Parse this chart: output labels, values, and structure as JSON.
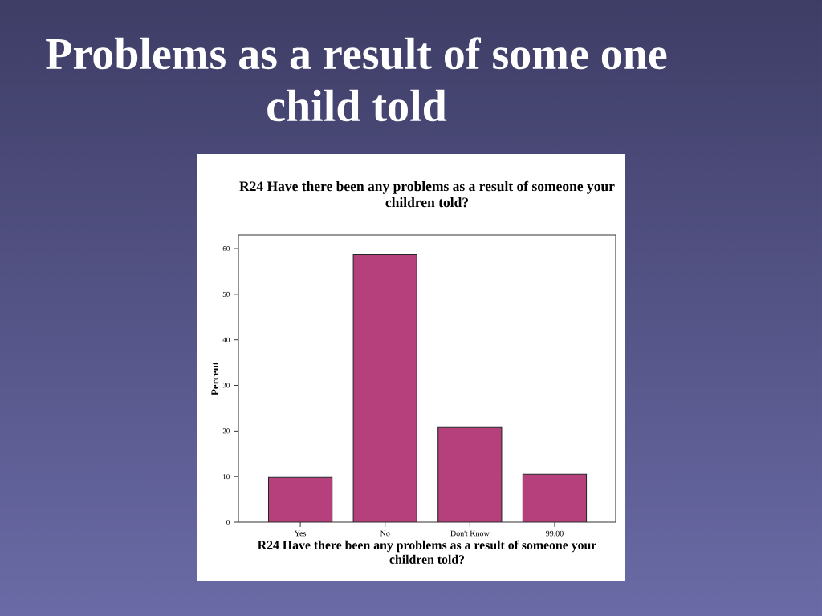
{
  "chart_data": {
    "type": "bar",
    "title": "Problems as a result of some one child told",
    "subtitle": "R24 Have there been any problems as a result of someone your children told?",
    "xlabel": "R24 Have there been any problems as a result of someone your children told?",
    "ylabel": "Percent",
    "categories": [
      "Yes",
      "No",
      "Don't Know",
      "99.00"
    ],
    "values": [
      9.8,
      58.7,
      20.9,
      10.5
    ],
    "color": "#b5407c",
    "ylim": [
      0,
      63
    ],
    "yticks": [
      0,
      10,
      20,
      30,
      40,
      50,
      60
    ]
  }
}
